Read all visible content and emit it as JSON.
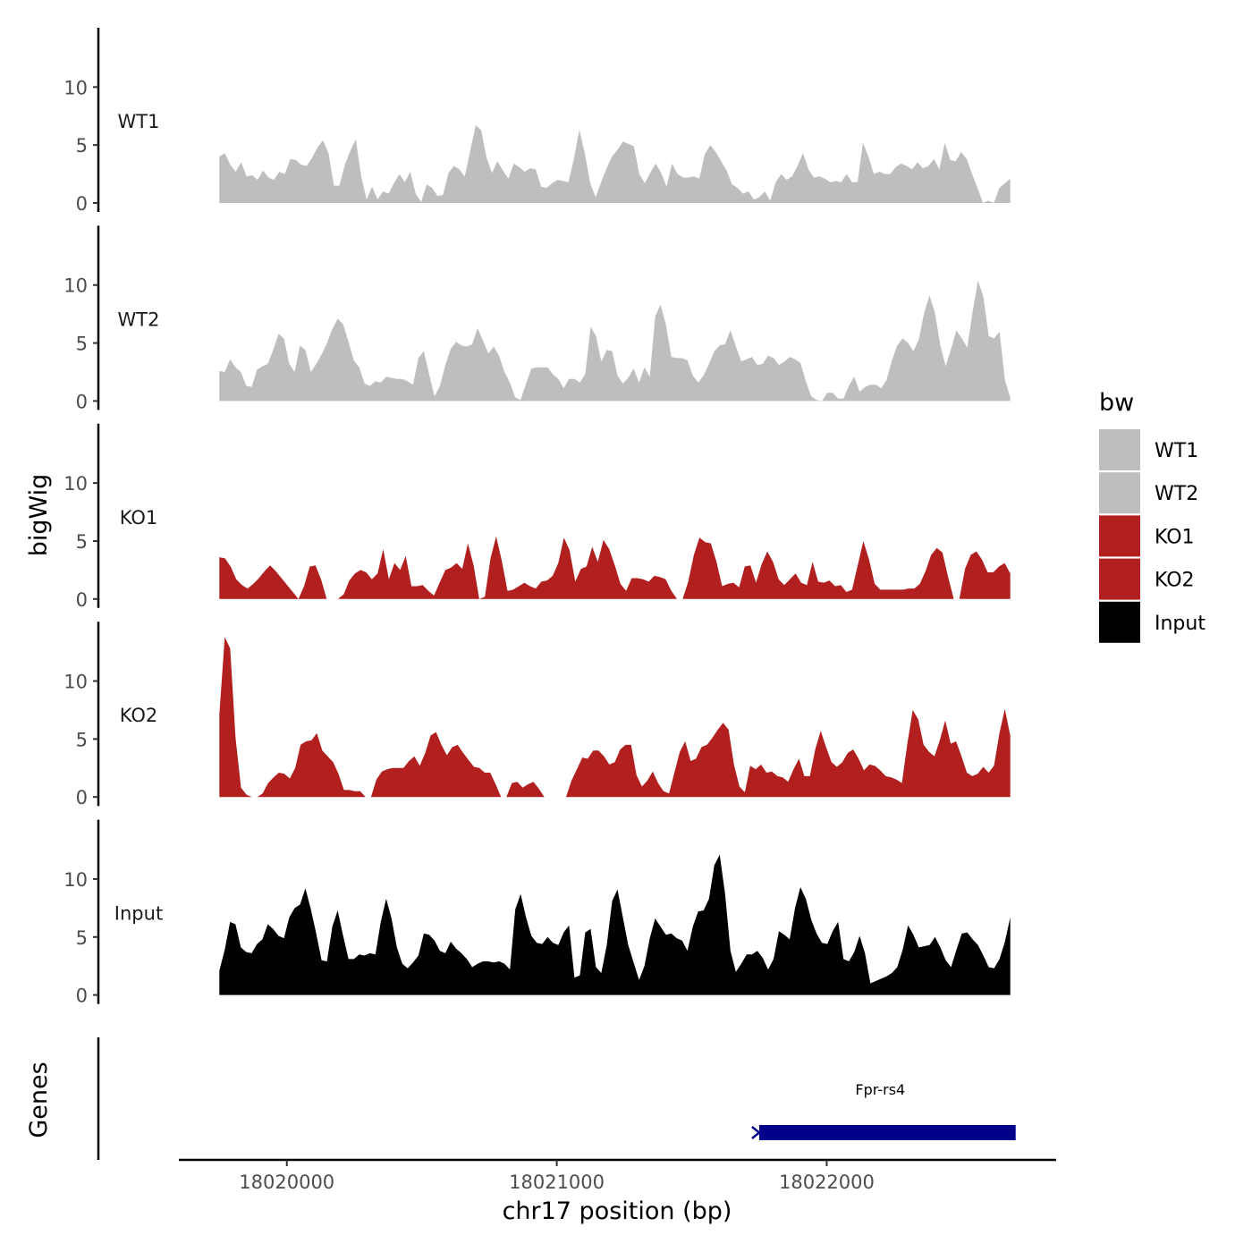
{
  "chart_data": {
    "type": "area",
    "title": "",
    "xlabel": "chr17 position (bp)",
    "ylabel": "bigWig",
    "genes_axis_label": "Genes",
    "xlim": [
      18019600,
      18022850
    ],
    "x_range": [
      18019750,
      18022680
    ],
    "ylim": [
      0,
      14.5
    ],
    "y_ticks": [
      0,
      5,
      10
    ],
    "x_ticks": [
      18020000,
      18021000,
      18022000
    ],
    "x_tick_labels": [
      "18020000",
      "18021000",
      "18022000"
    ],
    "legend": {
      "title": "bw",
      "position": "right",
      "entries": [
        {
          "label": "WT1",
          "color": "#bebebe"
        },
        {
          "label": "WT2",
          "color": "#bebebe"
        },
        {
          "label": "KO1",
          "color": "#b21f1f"
        },
        {
          "label": "KO2",
          "color": "#b21f1f"
        },
        {
          "label": "Input",
          "color": "#000000"
        }
      ]
    },
    "series": [
      {
        "name": "WT1",
        "color": "#bebebe",
        "values": [
          4,
          4.3,
          3.3,
          2.7,
          3.5,
          2.3,
          2.4,
          2,
          2.8,
          2.2,
          2,
          2.7,
          2.5,
          3.8,
          3.7,
          3.3,
          3.2,
          3.9,
          4.8,
          5.4,
          4.3,
          1.5,
          1.5,
          3.3,
          4.5,
          5.5,
          2.3,
          0.3,
          1.4,
          0.3,
          1,
          0.8,
          1.7,
          2.5,
          1.8,
          2.7,
          0.8,
          0.1,
          1.6,
          1.3,
          0.6,
          0.7,
          2.6,
          3.2,
          2.9,
          2.3,
          4.5,
          6.7,
          6.3,
          3.9,
          2.6,
          3.6,
          2.8,
          2.1,
          3.4,
          3.1,
          2.7,
          3,
          2.9,
          1.4,
          1.3,
          1.7,
          2,
          1.9,
          1.8,
          3.8,
          6.3,
          4.3,
          1.7,
          0.5,
          1.8,
          3,
          4,
          4.6,
          5.3,
          5.1,
          4.9,
          2.5,
          1.7,
          2.6,
          3.4,
          2.6,
          1.4,
          3.4,
          2.5,
          2.2,
          2.2,
          2.3,
          2.1,
          4.2,
          5,
          4.4,
          3.6,
          2.8,
          1.6,
          1.3,
          0.8,
          1,
          0.3,
          0.5,
          1,
          0.2,
          1.8,
          2.5,
          2,
          2.3,
          3.2,
          4.3,
          2.9,
          2.2,
          2.3,
          2.1,
          1.8,
          1.9,
          1.8,
          2.5,
          1.8,
          1.8,
          5.2,
          4,
          2.5,
          2.7,
          2.5,
          2.5,
          3.1,
          3.4,
          3.2,
          2.9,
          3.5,
          3,
          3.2,
          3.8,
          2.9,
          5.2,
          3.7,
          3.6,
          4.4,
          3.8,
          2.5,
          1.3,
          0,
          0.2,
          0,
          1.3,
          1.7,
          2.1
        ]
      },
      {
        "name": "WT2",
        "color": "#bebebe",
        "values": [
          2.6,
          2.5,
          3.6,
          2.9,
          2.5,
          1.3,
          1.2,
          2.7,
          3,
          3.2,
          4.4,
          5.8,
          5.4,
          3.2,
          2.5,
          4.8,
          4.4,
          2.5,
          3.2,
          4,
          5,
          6.2,
          7.1,
          6.6,
          5.1,
          3.5,
          2.9,
          1.5,
          1.3,
          1.7,
          1.6,
          2.1,
          2,
          1.9,
          1.9,
          1.7,
          1.4,
          3.7,
          4.3,
          2.3,
          0.4,
          1.3,
          3.1,
          4.5,
          5.1,
          4.8,
          4.7,
          4.9,
          6.3,
          5.2,
          4.1,
          4.7,
          3.9,
          2.5,
          1.6,
          0.3,
          0.1,
          1.5,
          2.8,
          2.9,
          2.9,
          2.9,
          2.3,
          1.9,
          1.1,
          1.9,
          1.9,
          1.6,
          2.3,
          6.4,
          5.6,
          3.4,
          4.4,
          4.3,
          2.2,
          1.5,
          2,
          2.8,
          1.6,
          2.9,
          2.1,
          7.3,
          8.3,
          6.6,
          3.8,
          3.7,
          3.7,
          3.5,
          2.2,
          1.6,
          2.2,
          3.2,
          4.3,
          4.8,
          4.9,
          6.1,
          4.7,
          3.4,
          3.6,
          3.8,
          3.1,
          3.2,
          3.9,
          3.7,
          3.1,
          3.4,
          3.8,
          3.6,
          3.3,
          1.7,
          0.4,
          0.1,
          0,
          0.7,
          0.7,
          0.2,
          0.2,
          1.3,
          2.1,
          0.8,
          1.2,
          1.4,
          1.4,
          1.1,
          1.8,
          3.5,
          4.8,
          5.4,
          5,
          4.3,
          5.3,
          7.6,
          9.1,
          7.6,
          4.8,
          3,
          4.5,
          6.1,
          5.4,
          4.6,
          7.7,
          10.4,
          9,
          5.6,
          5.4,
          6,
          1.8,
          0.3
        ]
      },
      {
        "name": "KO1",
        "color": "#b21f1f",
        "values": [
          3.6,
          3.5,
          2.8,
          1.7,
          1.2,
          0.9,
          1.3,
          1.8,
          2.4,
          2.9,
          2.4,
          1.8,
          1.2,
          0.6,
          0,
          1.1,
          2.8,
          2.9,
          1.7,
          0,
          0,
          0,
          0.4,
          1.6,
          2.2,
          2.5,
          2.3,
          1.7,
          2.2,
          4.3,
          1.7,
          3.1,
          2.5,
          3.7,
          1.1,
          1.1,
          1.2,
          0.7,
          0.3,
          1.4,
          2.5,
          2.7,
          3.1,
          2.6,
          4.8,
          2.9,
          0,
          0.2,
          3.5,
          5.4,
          3.3,
          0.7,
          0.8,
          1.1,
          1.4,
          1.1,
          0.9,
          1.5,
          1.6,
          2,
          3.1,
          5.3,
          4.2,
          1.5,
          2.6,
          2.8,
          4.5,
          3.2,
          5.1,
          4.3,
          2.9,
          1.3,
          0.7,
          1.8,
          1.8,
          1.7,
          1.5,
          2,
          1.9,
          1.7,
          0.7,
          0,
          0,
          1.5,
          3.8,
          5.3,
          4.9,
          4.8,
          3.2,
          1.1,
          1.3,
          1.4,
          1,
          2.8,
          2.9,
          1.4,
          3,
          4.1,
          3.2,
          1.7,
          1.2,
          1.7,
          2.2,
          1.4,
          1.2,
          3.2,
          1.5,
          1.4,
          1.6,
          1.1,
          1.2,
          0.6,
          0.8,
          2.9,
          5,
          3.4,
          1.3,
          0.8,
          0.8,
          0.8,
          0.8,
          0.8,
          0.9,
          0.9,
          1.3,
          2.4,
          3.8,
          4.4,
          4,
          1.9,
          0,
          0,
          2.6,
          3.8,
          4.1,
          3.4,
          2.3,
          2.3,
          2.8,
          3.1,
          2.2
        ]
      },
      {
        "name": "KO2",
        "color": "#b21f1f",
        "values": [
          7.1,
          13.8,
          12.8,
          5.1,
          0.8,
          0.2,
          0,
          0,
          0.3,
          1.2,
          1.7,
          2.1,
          2,
          1.6,
          2.5,
          4.5,
          4.8,
          4.9,
          5.5,
          4,
          3.5,
          3,
          2,
          0.6,
          0.6,
          0.5,
          0.5,
          0,
          0,
          1.5,
          2.2,
          2.4,
          2.5,
          2.5,
          2.5,
          3.1,
          3.5,
          2.7,
          3.8,
          5.3,
          5.6,
          4.5,
          3.6,
          4.3,
          4.5,
          3.8,
          3.2,
          2.6,
          2.5,
          2.1,
          2.1,
          1.1,
          0,
          0,
          1.2,
          1.3,
          0.8,
          1.1,
          1.3,
          0.7,
          0,
          0,
          0,
          0,
          0,
          1.4,
          2.4,
          3.4,
          3.3,
          4,
          4,
          3.5,
          2.8,
          3,
          4.1,
          4.5,
          4.5,
          1.9,
          0.9,
          1.4,
          2.2,
          1.2,
          0.5,
          0.3,
          2.1,
          3.9,
          4.8,
          3.1,
          3.3,
          4.3,
          4.5,
          5.1,
          5.8,
          6.4,
          5.8,
          2.8,
          0.9,
          0.4,
          2.7,
          2.4,
          2.8,
          2.1,
          2.2,
          1.8,
          1.7,
          1.3,
          2.4,
          3.3,
          1.8,
          1.8,
          4.1,
          5.7,
          4.3,
          3,
          2.6,
          3,
          3.8,
          4.1,
          3.3,
          2.3,
          2.8,
          2.7,
          2.3,
          1.8,
          1.7,
          1.5,
          1.2,
          4.6,
          7.5,
          6.7,
          4.5,
          3.9,
          3.5,
          4.9,
          6.6,
          4.6,
          4.8,
          3.5,
          2.1,
          1.8,
          2,
          2.6,
          2.1,
          2.7,
          5.5,
          7.6,
          5.3
        ]
      },
      {
        "name": "Input",
        "color": "#000000",
        "values": [
          2.1,
          3.9,
          6.3,
          6.1,
          4.1,
          3.7,
          3.6,
          4.4,
          4.8,
          6.1,
          5.7,
          5.1,
          4.9,
          6.7,
          7.5,
          7.8,
          9.2,
          7.4,
          5.3,
          3,
          2.9,
          5.9,
          7.3,
          5.1,
          3.1,
          3.1,
          3.5,
          3.4,
          3.6,
          3.5,
          6.3,
          8.3,
          6.6,
          4.1,
          2.7,
          2.3,
          2.8,
          3.4,
          5.3,
          5.2,
          4.7,
          3.8,
          3.6,
          4.6,
          4,
          3.6,
          3.1,
          2.4,
          2.7,
          2.9,
          2.9,
          2.8,
          2.9,
          2.7,
          2.2,
          7.4,
          8.7,
          6.7,
          5.1,
          4.5,
          4.4,
          5,
          4.5,
          4.3,
          5.4,
          6,
          1.5,
          1.7,
          5.4,
          5.7,
          2.4,
          1.9,
          4.3,
          8.1,
          9.1,
          6.7,
          4.3,
          2.8,
          1.3,
          2.5,
          4.9,
          6.6,
          5.9,
          5.2,
          5.3,
          4.9,
          4.7,
          3.8,
          5.9,
          7.2,
          7.3,
          8.3,
          11.2,
          12.1,
          8.7,
          3.8,
          2,
          2.7,
          3.5,
          3.5,
          3.8,
          3.2,
          2.2,
          3.1,
          5.5,
          5.2,
          4.8,
          7.5,
          9.3,
          8.3,
          6.5,
          5.3,
          4.5,
          4.4,
          5.5,
          6.3,
          3.1,
          2.9,
          3.7,
          5.1,
          3.6,
          1,
          1.2,
          1.4,
          1.6,
          1.9,
          2.4,
          3.9,
          6,
          5.2,
          4.1,
          4.2,
          4.3,
          5,
          4.1,
          3,
          2.4,
          3.9,
          5.3,
          5.4,
          4.8,
          4.3,
          3.4,
          2.4,
          2.3,
          3.1,
          4.6,
          6.7
        ]
      }
    ],
    "genes": [
      {
        "name": "Fpr-rs4",
        "start": 18021730,
        "end": 18022700,
        "color": "#00008b",
        "strand": "-"
      }
    ]
  }
}
